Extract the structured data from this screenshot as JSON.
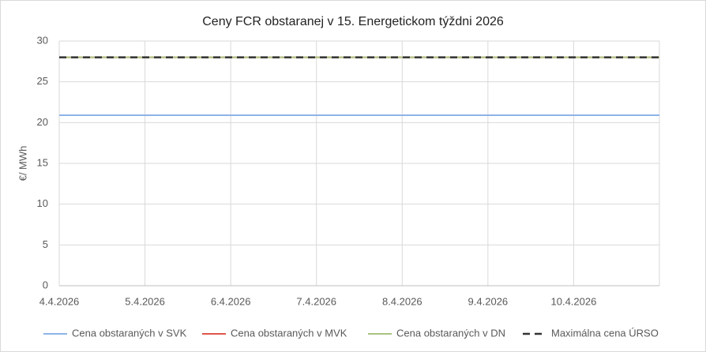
{
  "chart_data": {
    "type": "line",
    "title": "Ceny FCR obstaranej v 15. Energetickom týždni 2026",
    "y_label": "€/ MWh",
    "categories": [
      "4.4.2026",
      "5.4.2026",
      "6.4.2026",
      "7.4.2026",
      "8.4.2026",
      "9.4.2026",
      "10.4.2026",
      null
    ],
    "series": [
      {
        "name": "Cena obstaraných v SVK",
        "color": "#8db3e8",
        "dash": false,
        "values": [
          20.9,
          20.9,
          20.9,
          20.9,
          20.9,
          20.9,
          20.9,
          20.9
        ]
      },
      {
        "name": "Cena obstaraných v MVK",
        "color": "#e0544a",
        "dash": false,
        "values": [
          28,
          28,
          28,
          28,
          28,
          28,
          28,
          28
        ]
      },
      {
        "name": "Cena obstaraných v DN",
        "color": "#a9c47f",
        "dash": false,
        "values": [
          28,
          28,
          28,
          28,
          28,
          28,
          28,
          28
        ]
      },
      {
        "name": "Maximálna cena ÚRSO",
        "color": "#333333",
        "dash": true,
        "values": [
          28,
          28,
          28,
          28,
          28,
          28,
          28,
          28
        ]
      }
    ],
    "ylim": [
      0,
      30
    ],
    "yticks": [
      0,
      5,
      10,
      15,
      20,
      25,
      30
    ],
    "grid": true
  }
}
